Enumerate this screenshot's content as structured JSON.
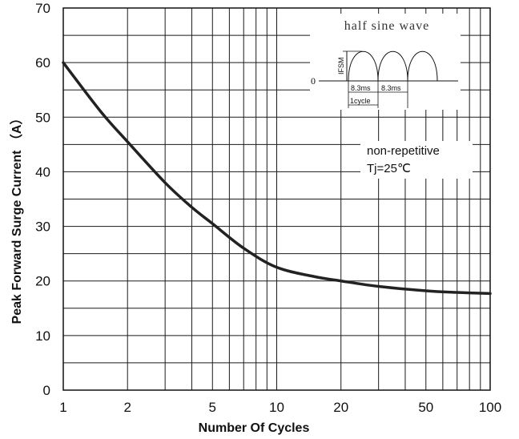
{
  "chart_data": {
    "type": "line",
    "xscale": "log",
    "xlim": [
      1,
      100
    ],
    "ylim": [
      0,
      70
    ],
    "xticks": [
      {
        "value": 1,
        "label": "1"
      },
      {
        "value": 2,
        "label": "2"
      },
      {
        "value": 5,
        "label": "5"
      },
      {
        "value": 10,
        "label": "10"
      },
      {
        "value": 20,
        "label": "20"
      },
      {
        "value": 50,
        "label": "50"
      },
      {
        "value": 100,
        "label": "100"
      }
    ],
    "yticks": [
      {
        "value": 0,
        "label": "0"
      },
      {
        "value": 10,
        "label": "10"
      },
      {
        "value": 20,
        "label": "20"
      },
      {
        "value": 30,
        "label": "30"
      },
      {
        "value": 40,
        "label": "40"
      },
      {
        "value": 50,
        "label": "50"
      },
      {
        "value": 60,
        "label": "60"
      },
      {
        "value": 70,
        "label": "70"
      }
    ],
    "xlabel": "Number Of Cycles",
    "ylabel": "Peak Forward Surge Current （A）",
    "grid": true,
    "series": [
      {
        "x": [
          1,
          1.5,
          2,
          3,
          4,
          5,
          7,
          10,
          15,
          20,
          30,
          50,
          70,
          100
        ],
        "y": [
          60,
          51,
          45.5,
          38,
          33.5,
          30.5,
          26,
          22.5,
          20.8,
          20,
          19,
          18.2,
          17.9,
          17.7
        ]
      }
    ],
    "annotations": {
      "note_line1": "non-repetitive",
      "note_line2": "Tj=25℃"
    },
    "inset": {
      "title": "half sine wave",
      "ifsm_label": "IFSM",
      "zero_label": "0",
      "period_label_1": "8.3ms",
      "period_label_2": "8.3ms",
      "cycle_label": "1cycle"
    },
    "colors": {
      "curve": "#222222",
      "grid": "#1a1a1a"
    }
  }
}
